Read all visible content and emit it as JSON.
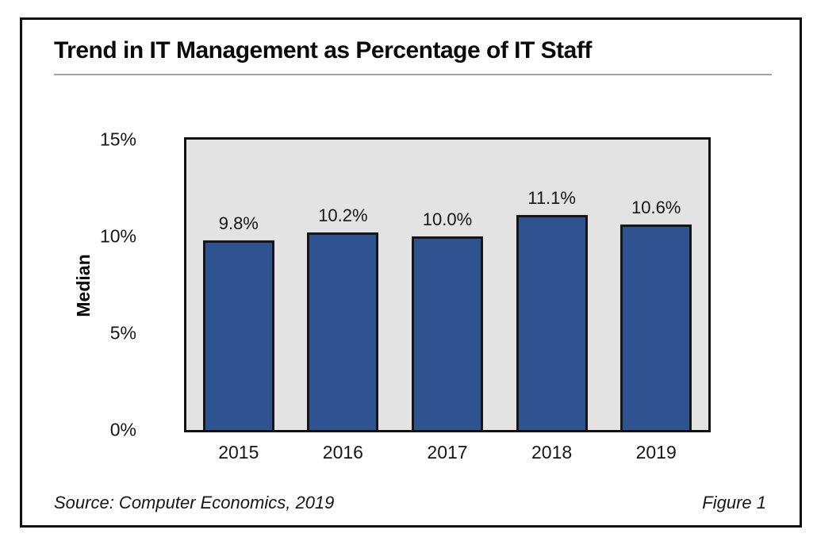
{
  "figure": {
    "title": "Trend in IT Management as Percentage of IT Staff",
    "source": "Source: Computer Economics, 2019",
    "figure_label": "Figure 1"
  },
  "chart_data": {
    "type": "bar",
    "title": "Trend in IT Management as Percentage of IT Staff",
    "categories": [
      "2015",
      "2016",
      "2017",
      "2018",
      "2019"
    ],
    "values": [
      9.8,
      10.2,
      10.0,
      11.1,
      10.6
    ],
    "bar_labels": [
      "9.8%",
      "10.2%",
      "10.0%",
      "11.1%",
      "10.6%"
    ],
    "xlabel": "",
    "ylabel": "Median",
    "ylim": [
      0,
      15
    ],
    "yticks": [
      {
        "value": 15,
        "label": "15%"
      },
      {
        "value": 10,
        "label": "10%"
      },
      {
        "value": 5,
        "label": "5%"
      },
      {
        "value": 0,
        "label": "0%"
      }
    ],
    "grid": false,
    "legend_position": "none",
    "colors": {
      "bar_fill": "#2f5390",
      "bar_border": "#161616",
      "plot_background": "#e3e3e3",
      "title_rule": "#a3a3a3",
      "frame_border": "#111111"
    }
  }
}
